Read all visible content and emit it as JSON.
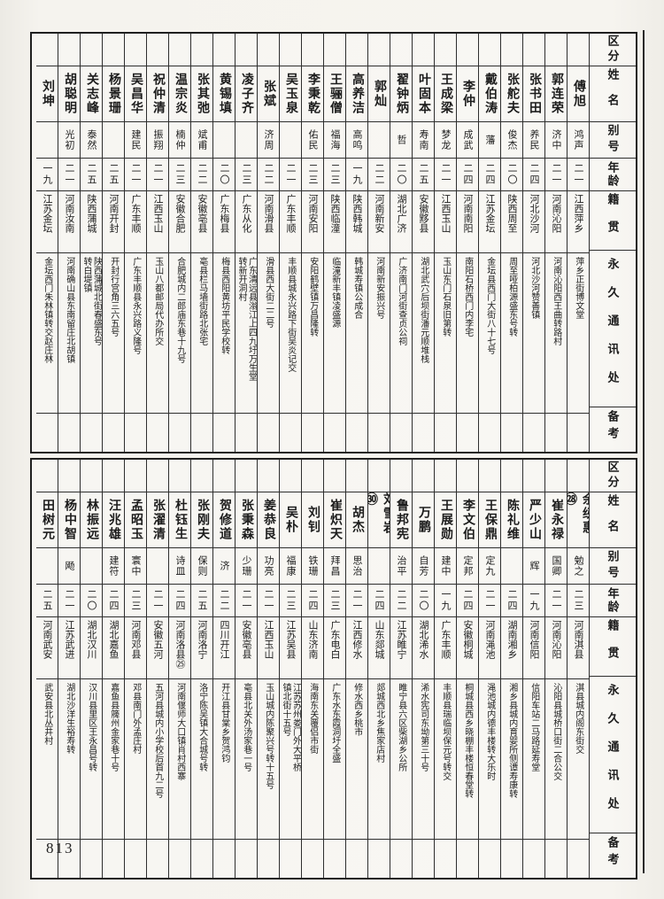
{
  "page": {
    "number": "813"
  },
  "colors": {
    "paper": "#f5f3ee",
    "ink": "#1c1c1c",
    "line": "#2e2e2e"
  },
  "header_labels": [
    "区分",
    "姓名",
    "别号",
    "年龄",
    "籍贯",
    "永久通讯处",
    "备考"
  ],
  "tables": [
    {
      "persons": [
        {
          "name": "傅旭",
          "alias": "鸿声",
          "age": "二一",
          "origin": "江西萍乡",
          "address": "萍乡正街博文堂"
        },
        {
          "name": "郭连荣",
          "alias": "济中",
          "age": "二一",
          "origin": "河南沁阳",
          "address": "河南沁阳西王曲转路村"
        },
        {
          "name": "张书田",
          "alias": "养民",
          "age": "二四",
          "origin": "河北沙河",
          "address": "河北沙河赞善镇"
        },
        {
          "name": "张舵夫",
          "alias": "俊杰",
          "age": "二〇",
          "origin": "陕西周至",
          "address": "周至哑柏源盛东号转"
        },
        {
          "name": "戴伯涛",
          "alias": "藩",
          "age": "二四",
          "origin": "江苏金坛",
          "address": "金坛县西门大街八十七号"
        },
        {
          "name": "李仲",
          "alias": "成武",
          "age": "二四",
          "origin": "河南南阳",
          "address": "南阳石桥西门内李宅"
        },
        {
          "name": "王成梁",
          "alias": "梦龙",
          "age": "二一",
          "origin": "江西玉山",
          "address": "玉山东门石泉旧第转"
        },
        {
          "name": "叶固本",
          "alias": "寿南",
          "age": "二五",
          "origin": "安徽黟县",
          "address": "湖北武穴后坝街潘元顺堆栈"
        },
        {
          "name": "翟钟炳",
          "alias": "哲",
          "age": "二〇",
          "origin": "湖北广济",
          "address": "广济南门河街查贞公祠"
        },
        {
          "name": "郭灿",
          "alias": "",
          "age": "二二",
          "origin": "河南新安",
          "address": "河南新安振兴号"
        },
        {
          "name": "高养洁",
          "alias": "高鸣",
          "age": "一九",
          "origin": "陕西韩城",
          "address": "韩城寿镇公成合"
        },
        {
          "name": "王骊僧",
          "alias": "福海",
          "age": "二三",
          "origin": "陕西临潼",
          "address": "临潼新丰镇凌盛源"
        },
        {
          "name": "李秉乾",
          "alias": "佑民",
          "age": "二三",
          "origin": "河南安阳",
          "address": "安阳鹤壁镇万昌隆转"
        },
        {
          "name": "吴玉泉",
          "alias": "",
          "age": "二一",
          "origin": "广东丰顺",
          "address": "丰顺县城永兴路下街吴炎记交"
        },
        {
          "name": "张斌",
          "alias": "济周",
          "age": "二二",
          "origin": "河南滑县",
          "address": "滑县西大街二二号"
        },
        {
          "name": "凌子齐",
          "alias": "",
          "age": "二三",
          "origin": "广东从化",
          "address": "广东清远县滃江上四九圩万生堂\n转新开洞村"
        },
        {
          "name": "黄锡填",
          "alias": "",
          "age": "二〇",
          "origin": "广东梅县",
          "address": "梅县西阳黄坊平民学校转"
        },
        {
          "name": "张其弛",
          "alias": "斌甫",
          "age": "二二",
          "origin": "安徽亳县",
          "address": "亳县栏马墙街路北张宅"
        },
        {
          "name": "温宗炎",
          "alias": "楠仲",
          "age": "二三",
          "origin": "安徽合肥",
          "address": "合肥城内二郎庙东巷十九号"
        },
        {
          "name": "祝仲清",
          "alias": "振翔",
          "age": "二一",
          "origin": "江西玉山",
          "address": "玉山八都邮局代办所交"
        },
        {
          "name": "吴昌华",
          "alias": "建民",
          "age": "二一",
          "origin": "广东丰顺",
          "address": "广东丰顺县永兴路义隆号"
        },
        {
          "name": "杨景珊",
          "alias": "",
          "age": "二五",
          "origin": "河南开封",
          "address": "开封行宫角三六五号"
        },
        {
          "name": "关志峰",
          "alias": "泰然",
          "age": "二五",
          "origin": "陕西蒲城",
          "address": "陕西蒲城北街春盛东号\n转白堤镇"
        },
        {
          "name": "胡聪明",
          "alias": "光初",
          "age": "二一",
          "origin": "河南汝南",
          "address": "河南确山县东南留庄北胡镇"
        },
        {
          "name": "刘坤",
          "alias": "",
          "age": "一九",
          "origin": "江苏金坛",
          "address": "金坛西门朱林镇转交赵庄林"
        }
      ]
    },
    {
      "persons": [
        {
          "name": "余纫惠㉘",
          "alias": "勉之",
          "age": "二三",
          "origin": "河南淇县",
          "address": "淇县城内阁东街交"
        },
        {
          "name": "崔永禄",
          "alias": "国卿",
          "age": "二一",
          "origin": "河南沁阳",
          "address": "沁阳县城桥口街二合公交"
        },
        {
          "name": "严少山",
          "alias": "辉",
          "age": "一九",
          "origin": "河南信阳",
          "address": "信阳车站二马路延寿堂"
        },
        {
          "name": "陈礼维",
          "alias": "",
          "age": "二四",
          "origin": "湖南湘乡",
          "address": "湘乡县城内育婴所侧谭寿康转"
        },
        {
          "name": "王保鼎",
          "alias": "定九",
          "age": "二一",
          "origin": "河南渑池",
          "address": "渑池城内德丰楼转大乐时"
        },
        {
          "name": "李文伯",
          "alias": "定邦",
          "age": "二四",
          "origin": "安徽桐城",
          "address": "桐城县西乡晓棚丰楼恒春堂转"
        },
        {
          "name": "王展勋",
          "alias": "建中",
          "age": "一九",
          "origin": "广东丰顺",
          "address": "丰顺县瑞临坝保元号转交"
        },
        {
          "name": "万鹏",
          "alias": "自芳",
          "age": "二〇",
          "origin": "湖北浠水",
          "address": "浠水宪司东坳第三十号"
        },
        {
          "name": "鲁邦宪",
          "alias": "治平",
          "age": "二二",
          "origin": "江苏睢宁",
          "address": "睢宁县六区柴湖乡公所"
        },
        {
          "name": "刘雪岩㉚",
          "alias": "",
          "age": "二四",
          "origin": "山东郯城",
          "address": "郯城西北乡焦家店村"
        },
        {
          "name": "胡杰",
          "alias": "思治",
          "age": "二一",
          "origin": "江西修水",
          "address": "修水西乡桃市"
        },
        {
          "name": "崔炽天",
          "alias": "拜昌",
          "age": "二三",
          "origin": "广东电白",
          "address": "广东水东霞洞圩全盛"
        },
        {
          "name": "刘钊",
          "alias": "铁珊",
          "age": "二四",
          "origin": "山东济南",
          "address": "海南东关覆侣市街"
        },
        {
          "name": "吴朴",
          "alias": "福康",
          "age": "二三",
          "origin": "江苏吴县",
          "address": "江苏苏州娄门外大平桥\n镇北街十五号"
        },
        {
          "name": "姜恭良",
          "alias": "功亮",
          "age": "二一",
          "origin": "江西玉山",
          "address": "玉山城内陈聚兴号转十五号"
        },
        {
          "name": "张秉森",
          "alias": "少珊",
          "age": "二一",
          "origin": "安徽亳县",
          "address": "亳县北关外汤家巷一号"
        },
        {
          "name": "贺修道",
          "alias": "济",
          "age": "二二",
          "origin": "四川开江",
          "address": "开江县甘棠乡贺鸿钧"
        },
        {
          "name": "张刚夫",
          "alias": "保则",
          "age": "二五",
          "origin": "河南洛宁",
          "address": "洛宁陈吴镇大合城号转"
        },
        {
          "name": "杜钰生",
          "alias": "诗皿",
          "age": "二四",
          "origin": "河南洛县㉕",
          "address": "河南偃师大口镇肖村西寨"
        },
        {
          "name": "张濯清",
          "alias": "",
          "age": "二一",
          "origin": "安徽五河",
          "address": "五河县城内小学校后首九二号"
        },
        {
          "name": "孟昭玉",
          "alias": "寰中",
          "age": "二三",
          "origin": "河南邓县",
          "address": "邓县南门外孟庄村"
        },
        {
          "name": "汪兆雄",
          "alias": "建符",
          "age": "二四",
          "origin": "湖北嘉鱼",
          "address": "嘉鱼县簰州金家巷十号"
        },
        {
          "name": "林振远",
          "alias": "",
          "age": "二〇",
          "origin": "湖北汉川",
          "address": "汉川县里区王永昌号转"
        },
        {
          "name": "杨中智",
          "alias": "飏",
          "age": "二一",
          "origin": "江苏武进",
          "address": "湖北沙洋生裕寿转"
        },
        {
          "name": "田树元",
          "alias": "",
          "age": "二五",
          "origin": "河南武安",
          "address": "武安县北丛井村"
        }
      ]
    }
  ]
}
